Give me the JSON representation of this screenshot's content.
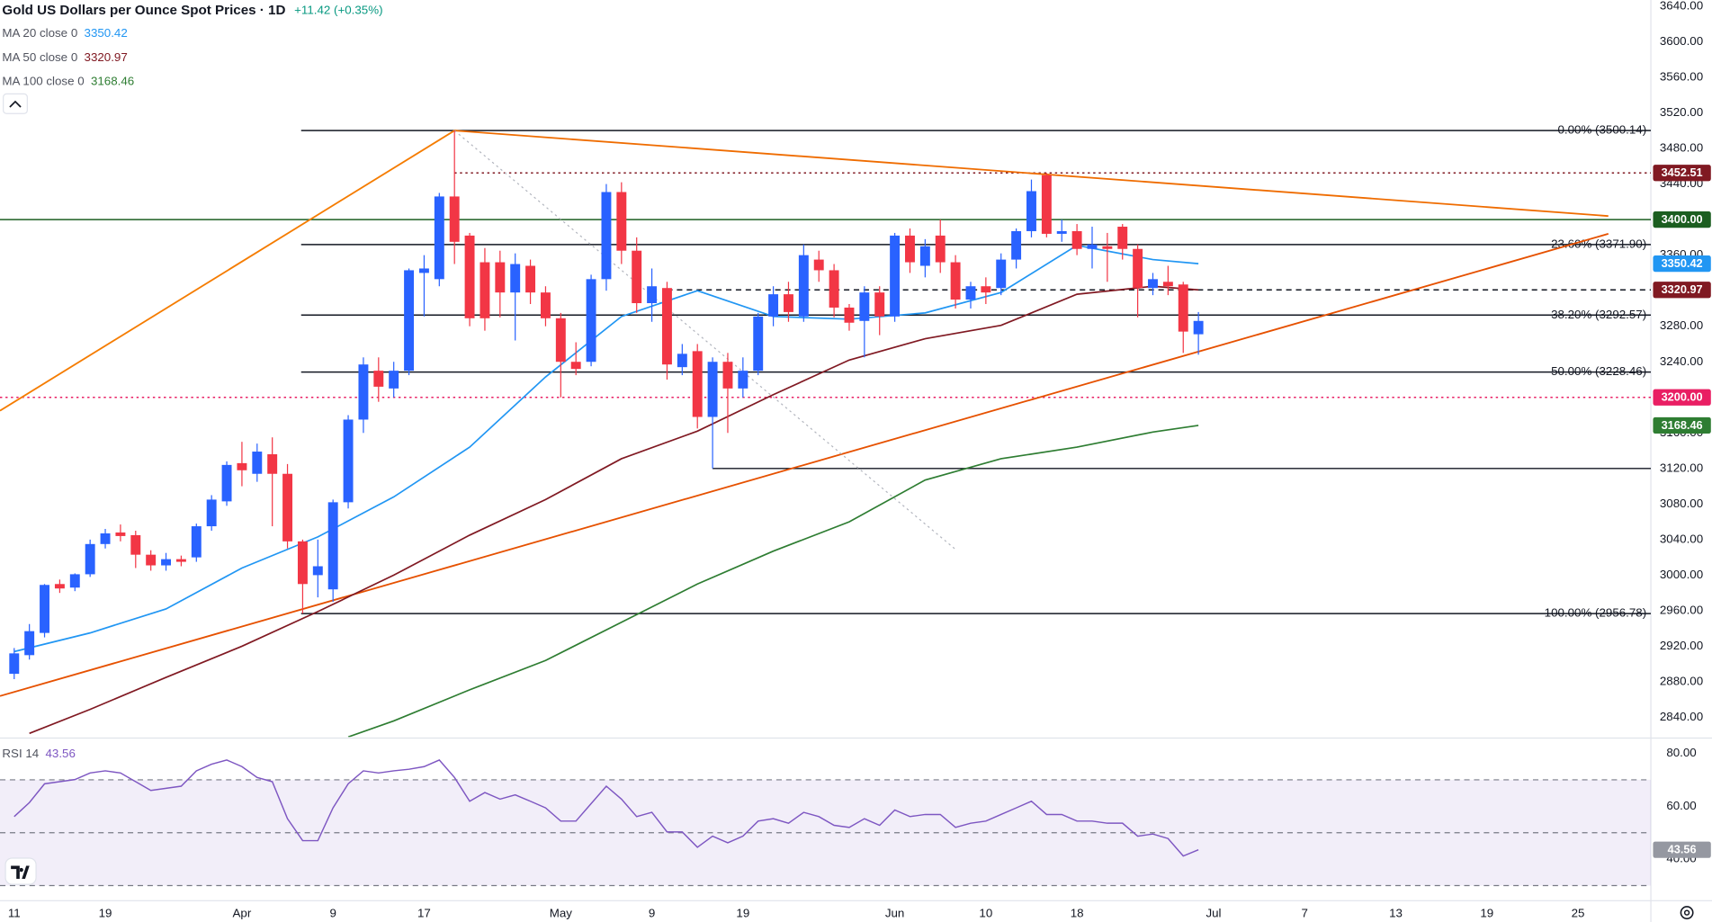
{
  "chart_data": {
    "type": "candlestick",
    "title": "Gold US Dollars per Ounce Spot Prices · 1D",
    "change": "+11.42 (+0.35%)",
    "change_color": "#089981",
    "up_color": "#2962ff",
    "down_color": "#f23645",
    "candles": {
      "open": [
        2889,
        2910,
        2935,
        2990,
        2986,
        3001,
        3035,
        3048,
        3045,
        3023,
        3011,
        3018,
        3020,
        3055,
        3083,
        3126,
        3114,
        3136,
        3114,
        3038,
        3000,
        2984,
        3082,
        3175,
        3230,
        3210,
        3230,
        3340,
        3333,
        3426,
        3382,
        3352,
        3352,
        3318,
        3348,
        3318,
        3289,
        3240,
        3240,
        3333,
        3431,
        3365,
        3306,
        3323,
        3234,
        3252,
        3178,
        3240,
        3210,
        3230,
        3291,
        3316,
        3291,
        3355,
        3343,
        3301,
        3286,
        3318,
        3291,
        3382,
        3348,
        3382,
        3352,
        3310,
        3325,
        3323,
        3355,
        3387,
        3450,
        3384,
        3387,
        3367,
        3370,
        3392,
        3367,
        3323,
        3330,
        3327,
        3271
      ],
      "high": [
        2918,
        2945,
        2990,
        2995,
        3002,
        3040,
        3052,
        3057,
        3050,
        3028,
        3025,
        3022,
        3058,
        3090,
        3128,
        3150,
        3148,
        3155,
        3125,
        3040,
        3040,
        3085,
        3180,
        3245,
        3245,
        3240,
        3345,
        3360,
        3430,
        3500.14,
        3385,
        3368,
        3365,
        3362,
        3355,
        3325,
        3295,
        3262,
        3338,
        3440,
        3442,
        3380,
        3345,
        3330,
        3260,
        3260,
        3245,
        3250,
        3245,
        3295,
        3325,
        3330,
        3372,
        3365,
        3350,
        3305,
        3325,
        3325,
        3385,
        3390,
        3378,
        3400,
        3360,
        3330,
        3335,
        3362,
        3390,
        3445,
        3452.51,
        3400,
        3395,
        3392,
        3385,
        3395,
        3372,
        3340,
        3348,
        3330,
        3296
      ],
      "low": [
        2883,
        2905,
        2930,
        2980,
        2982,
        2998,
        3030,
        3038,
        3008,
        3005,
        3005,
        3010,
        3015,
        3050,
        3078,
        3100,
        3105,
        3055,
        3030,
        2956.78,
        2975,
        2970,
        3075,
        3160,
        3195,
        3200,
        3225,
        3291,
        3325,
        3350,
        3280,
        3275,
        3290,
        3264,
        3305,
        3280,
        3200,
        3225,
        3235,
        3320,
        3350,
        3295,
        3285,
        3220,
        3225,
        3165,
        3120,
        3160,
        3200,
        3225,
        3280,
        3285,
        3285,
        3330,
        3290,
        3275,
        3245,
        3270,
        3285,
        3340,
        3335,
        3340,
        3300,
        3300,
        3305,
        3315,
        3345,
        3380,
        3380,
        3375,
        3360,
        3345,
        3330,
        3355,
        3290,
        3315,
        3315,
        3250,
        3248
      ],
      "close": [
        2912,
        2937,
        2989,
        2985,
        3001,
        3035,
        3047,
        3044,
        3023,
        3011,
        3018,
        3015,
        3055,
        3085,
        3124,
        3118,
        3139,
        3114,
        3038,
        2990,
        3010,
        3082,
        3175,
        3237,
        3212,
        3230,
        3343,
        3345,
        3426,
        3375,
        3289,
        3289,
        3318,
        3350,
        3318,
        3289,
        3240,
        3232,
        3333,
        3431,
        3365,
        3306,
        3325,
        3237,
        3249,
        3178,
        3240,
        3210,
        3230,
        3291,
        3316,
        3296,
        3360,
        3343,
        3301,
        3284,
        3318,
        3291,
        3382,
        3352,
        3370,
        3352,
        3310,
        3325,
        3318,
        3355,
        3387,
        3432,
        3384,
        3387,
        3367,
        3372,
        3367,
        3367,
        3323,
        3333,
        3325,
        3274,
        3286
      ]
    },
    "series": [
      {
        "name": "MA 20 close 0",
        "color": "#2196f3",
        "x": [
          0,
          5,
          10,
          15,
          20,
          25,
          30,
          35,
          40,
          45,
          50,
          55,
          60,
          65,
          70,
          75,
          78
        ],
        "values": [
          2914,
          2935,
          2962,
          3008,
          3043,
          3088,
          3144,
          3223,
          3291,
          3320,
          3291,
          3288,
          3295,
          3318,
          3371,
          3355,
          3350.42
        ]
      },
      {
        "name": "MA 50 close 0",
        "color": "#801922",
        "x": [
          1,
          5,
          10,
          15,
          20,
          25,
          30,
          35,
          40,
          45,
          50,
          55,
          60,
          65,
          70,
          75,
          78
        ],
        "values": [
          2822,
          2849,
          2885,
          2920,
          2959,
          3000,
          3045,
          3085,
          3131,
          3162,
          3203,
          3242,
          3266,
          3281,
          3316,
          3325,
          3320.97
        ]
      },
      {
        "name": "MA 100 close 0",
        "color": "#2e7d32",
        "x": [
          22,
          25,
          30,
          35,
          40,
          45,
          50,
          55,
          60,
          65,
          70,
          75,
          78
        ],
        "values": [
          2818,
          2836,
          2871,
          2904,
          2947,
          2990,
          3027,
          3060,
          3107,
          3131,
          3144,
          3161,
          3168.46
        ]
      }
    ],
    "fib_levels": [
      {
        "label": "0.00% (3500.14)",
        "value": 3500.14,
        "from": 18.9
      },
      {
        "label": "23.60% (3371.90)",
        "value": 3371.9,
        "from": 18.9
      },
      {
        "label": "38.20% (3292.57)",
        "value": 3292.57,
        "from": 18.9
      },
      {
        "label": "50.00% (3228.46)",
        "value": 3228.46,
        "from": 18.9
      },
      {
        "label": "100.00% (2956.78)",
        "value": 2956.78,
        "from": 18.9
      }
    ],
    "fib_color": "#131722",
    "hlines": [
      {
        "value": 3400,
        "label": "3400.00",
        "color": "#1b5e20",
        "style": "solid",
        "from": -0.935,
        "tag": true
      },
      {
        "value": 3452.51,
        "color": "#801922",
        "style": "dotted",
        "from": 29,
        "tag": true
      },
      {
        "value": 3320.97,
        "color": "#131722",
        "style": "dashed",
        "from": 43
      },
      {
        "value": 3200,
        "label": "3200.00",
        "color": "#e91e63",
        "style": "dotted",
        "from": -0.935,
        "tag": true
      },
      {
        "value": 3120,
        "color": "#131722",
        "style": "solid",
        "from": 46
      }
    ],
    "trendlines": [
      {
        "color": "#f57c00",
        "style": "solid",
        "x": [
          -0.935,
          29
        ],
        "y": [
          3185,
          3500.14
        ]
      },
      {
        "color": "#ef6c00",
        "style": "solid",
        "x": [
          29,
          105
        ],
        "y": [
          3500.14,
          3404
        ]
      },
      {
        "color": "#e65100",
        "style": "solid",
        "x": [
          -0.935,
          105
        ],
        "y": [
          2864,
          3384
        ]
      },
      {
        "color": "#b2b5be",
        "style": "dotted",
        "x": [
          29,
          62
        ],
        "y": [
          3500.14,
          3029
        ]
      }
    ],
    "xlim": [
      -0.935,
      107.8
    ],
    "xticks": [
      {
        "value": 0,
        "label": "11"
      },
      {
        "value": 6,
        "label": "19"
      },
      {
        "value": 15,
        "label": "Apr"
      },
      {
        "value": 21,
        "label": "9"
      },
      {
        "value": 27,
        "label": "17"
      },
      {
        "value": 36,
        "label": "May"
      },
      {
        "value": 42,
        "label": "9"
      },
      {
        "value": 48,
        "label": "19"
      },
      {
        "value": 58,
        "label": "Jun"
      },
      {
        "value": 64,
        "label": "10"
      },
      {
        "value": 70,
        "label": "18"
      },
      {
        "value": 79,
        "label": "Jul"
      },
      {
        "value": 85,
        "label": "7"
      },
      {
        "value": 91,
        "label": "13"
      },
      {
        "value": 97,
        "label": "19"
      },
      {
        "value": 103,
        "label": "25"
      }
    ],
    "ylim": [
      2818,
      3647
    ],
    "yticks": [
      {
        "value": 2840,
        "label": "2840.00"
      },
      {
        "value": 2880,
        "label": "2880.00"
      },
      {
        "value": 2920,
        "label": "2920.00"
      },
      {
        "value": 2960,
        "label": "2960.00"
      },
      {
        "value": 3000,
        "label": "3000.00"
      },
      {
        "value": 3040,
        "label": "3040.00"
      },
      {
        "value": 3080,
        "label": "3080.00"
      },
      {
        "value": 3120,
        "label": "3120.00"
      },
      {
        "value": 3160,
        "label": "3160.00"
      },
      {
        "value": 3200,
        "label": "3200.00"
      },
      {
        "value": 3240,
        "label": "3240.00"
      },
      {
        "value": 3280,
        "label": "3280.00"
      },
      {
        "value": 3320,
        "label": "3320.00"
      },
      {
        "value": 3360,
        "label": "3360.00"
      },
      {
        "value": 3400,
        "label": "3400.00"
      },
      {
        "value": 3440,
        "label": "3440.00"
      },
      {
        "value": 3480,
        "label": "3480.00"
      },
      {
        "value": 3520,
        "label": "3520.00"
      },
      {
        "value": 3560,
        "label": "3560.00"
      },
      {
        "value": 3600,
        "label": "3600.00"
      },
      {
        "value": 3640,
        "label": "3640.00"
      }
    ],
    "rsi": {
      "name": "RSI 14",
      "color": "#7e57c2",
      "values": [
        56.1,
        61.4,
        68.5,
        69.3,
        70.1,
        72.6,
        73.4,
        72.6,
        69.3,
        66.0,
        66.8,
        67.6,
        73.4,
        75.9,
        77.5,
        75.0,
        70.9,
        69.3,
        55.3,
        47.0,
        47.0,
        59.4,
        68.5,
        73.4,
        72.6,
        73.4,
        74.0,
        75.0,
        77.5,
        70.9,
        61.9,
        65.2,
        62.7,
        64.3,
        61.9,
        59.4,
        54.4,
        54.4,
        61.0,
        67.6,
        62.7,
        56.1,
        57.7,
        50.3,
        50.3,
        44.5,
        48.7,
        46.2,
        48.7,
        54.4,
        55.3,
        53.6,
        57.7,
        56.1,
        52.8,
        52.0,
        55.3,
        52.8,
        58.6,
        56.1,
        56.9,
        56.9,
        52.0,
        53.6,
        54.4,
        56.9,
        59.4,
        61.9,
        56.9,
        56.9,
        54.4,
        54.4,
        53.6,
        53.6,
        48.7,
        49.5,
        47.8,
        41.2,
        43.56
      ],
      "ylim": [
        24.3,
        85.4
      ],
      "yticks": [
        {
          "value": 40,
          "label": "40.00"
        },
        {
          "value": 60,
          "label": "60.00"
        },
        {
          "value": 80,
          "label": "80.00"
        }
      ],
      "band": [
        30,
        70
      ],
      "levels": [
        30,
        50,
        70
      ]
    }
  }
}
